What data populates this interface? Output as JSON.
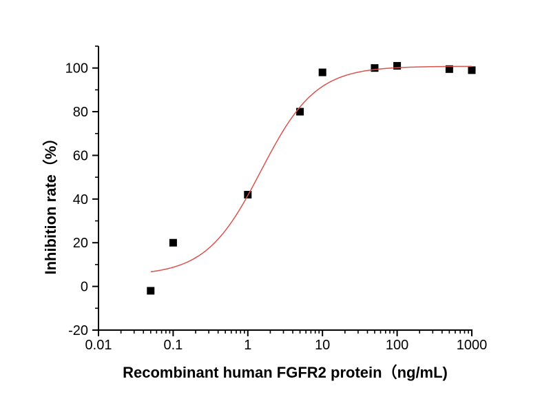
{
  "chart_data": {
    "type": "scatter",
    "title": "",
    "xlabel": "Recombinant human FGFR2 protein（ng/mL)",
    "ylabel": "Inhibition rate（%）",
    "x_scale": "log",
    "xlim": [
      0.01,
      1000
    ],
    "ylim": [
      -20,
      110
    ],
    "x_ticks": [
      0.01,
      0.1,
      1,
      10,
      100,
      1000
    ],
    "x_tick_labels": [
      "0.01",
      "0.1",
      "1",
      "10",
      "100",
      "1000"
    ],
    "y_ticks": [
      -20,
      0,
      20,
      40,
      60,
      80,
      100
    ],
    "y_tick_labels": [
      "-20",
      "0",
      "20",
      "40",
      "60",
      "80",
      "100"
    ],
    "y_minor_step": 10,
    "grid": false,
    "legend": false,
    "series": [
      {
        "name": "Inhibition rate",
        "marker": "black-square",
        "points": [
          {
            "x": 0.05,
            "y": -2
          },
          {
            "x": 0.1,
            "y": 20
          },
          {
            "x": 1,
            "y": 42
          },
          {
            "x": 5,
            "y": 80
          },
          {
            "x": 10,
            "y": 98
          },
          {
            "x": 50,
            "y": 100
          },
          {
            "x": 100,
            "y": 101
          },
          {
            "x": 500,
            "y": 99.5
          },
          {
            "x": 1000,
            "y": 99
          }
        ]
      }
    ],
    "fit_curve": {
      "model": "4-parameter-logistic",
      "bottom": 5,
      "top": 100.8,
      "ec50": 1.5,
      "hill": 1.18,
      "x_start": 0.05,
      "x_end": 1000
    },
    "colors": {
      "curve": "#d9534e",
      "marker": "#000000",
      "axis": "#000000",
      "text": "#000000"
    }
  }
}
